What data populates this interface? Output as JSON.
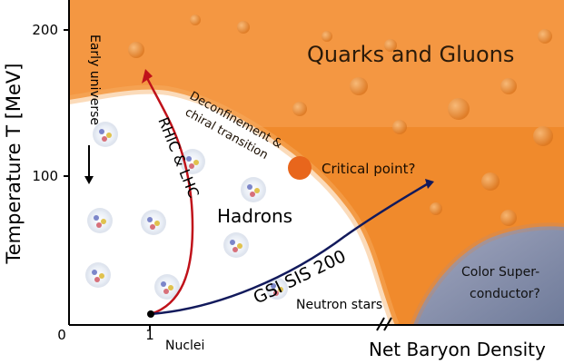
{
  "axes": {
    "y_label": "Temperature T [MeV]",
    "x_label": "Net Baryon Density",
    "y_ticks": [
      "200",
      "100"
    ],
    "x_ticks": [
      "0",
      "1"
    ]
  },
  "regions": {
    "qgp": "Quarks and Gluons",
    "hadrons": "Hadrons",
    "color_superconductor_line1": "Color Super-",
    "color_superconductor_line2": "conductor?"
  },
  "labels": {
    "early_universe": "Early universe",
    "rhic_lhc": "RHIC & LHC",
    "gsi": "GSI SIS 200",
    "deconfinement_line1": "Deconfinement &",
    "deconfinement_line2": "chiral transition",
    "critical_point": "Critical point?",
    "neutron_stars": "Neutron stars",
    "nuclei": "Nuclei"
  },
  "colors": {
    "qgp_orange": "#f08a2c",
    "qgp_light": "#f7b067",
    "superconductor_blue": "#7f8aa6",
    "rhic_red": "#c0121a",
    "gsi_navy": "#121a5c",
    "critical_point": "#e8661c"
  },
  "icons": [
    "hadron-cluster-icon",
    "arrow-down-icon"
  ]
}
